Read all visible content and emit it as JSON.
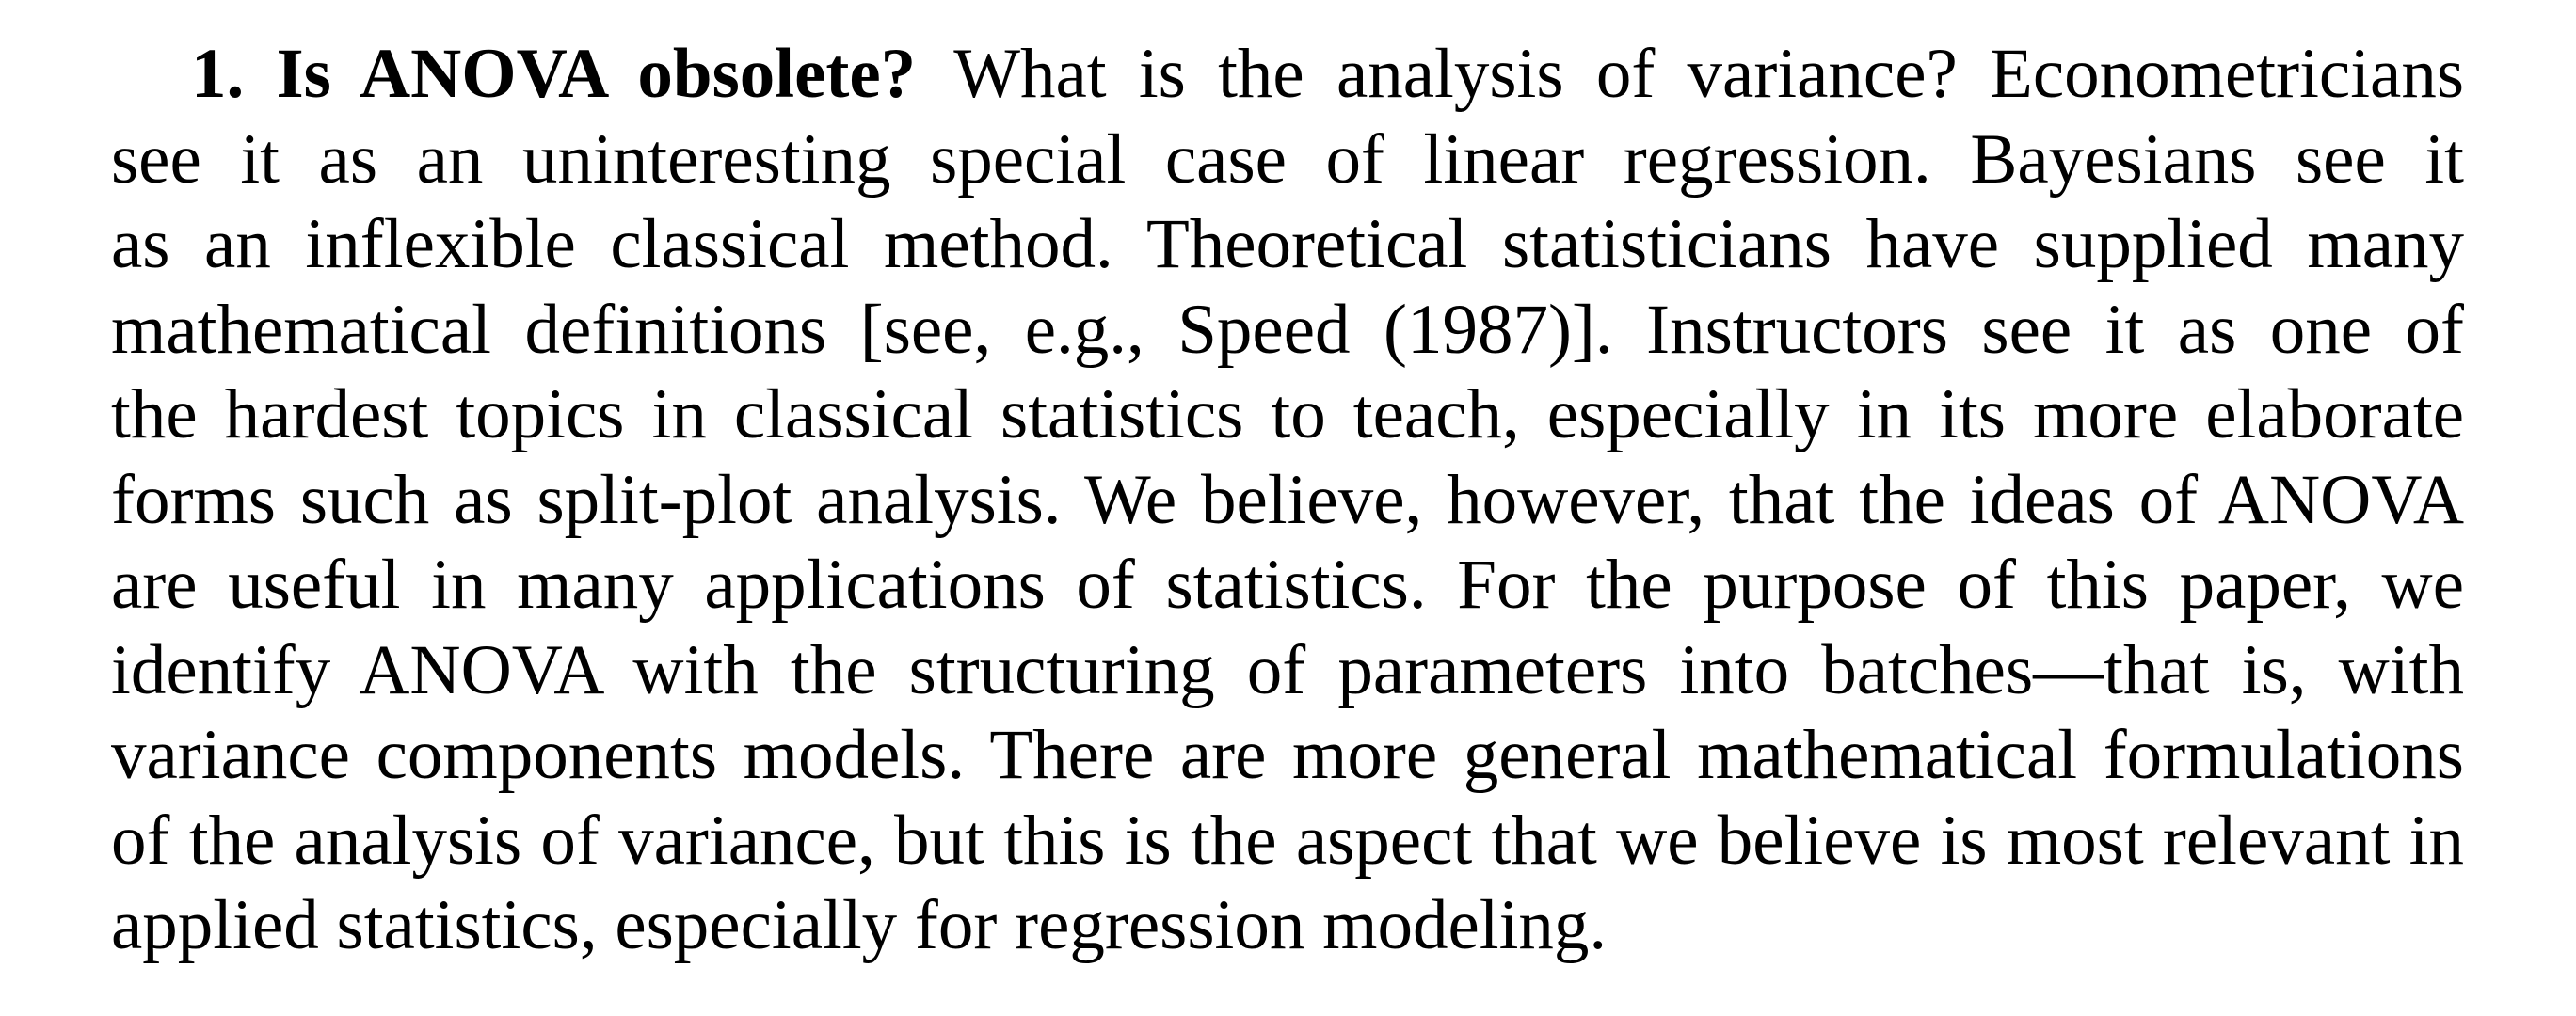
{
  "section": {
    "number": "1.",
    "title": "Is ANOVA obsolete?"
  },
  "lines": [
    "What is the analysis of variance? Econometricians",
    "see it as an uninteresting special case of linear regression. Bayesians see it",
    "as an inflexible classical method. Theoretical statisticians have supplied many",
    "mathematical definitions [see, e.g., Speed (1987)]. Instructors see it as one of",
    "the hardest topics in classical statistics to teach, especially in its more elaborate",
    "forms such as split-plot analysis. We believe, however, that the ideas of ANOVA",
    "are useful in many applications of statistics. For the purpose of this paper, we",
    "identify ANOVA with the structuring of parameters into batches—that is, with",
    "variance components models. There are more general mathematical formulations",
    "of the analysis of variance, but this is the aspect that we believe is most relevant in",
    "applied statistics, especially for regression modeling."
  ]
}
